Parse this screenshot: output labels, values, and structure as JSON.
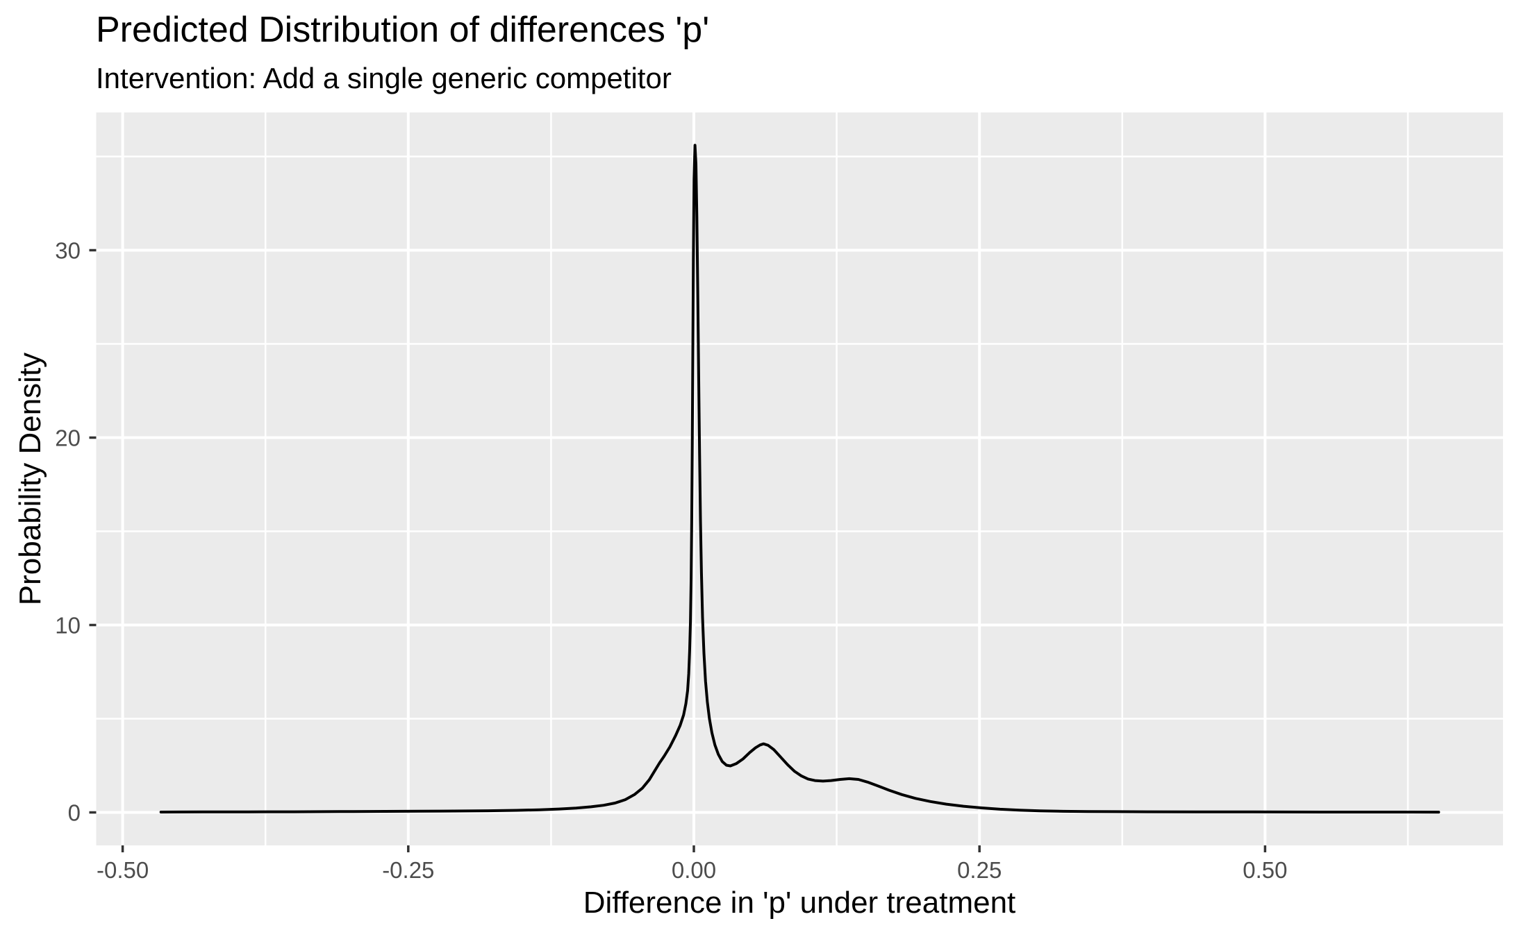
{
  "title": "Predicted Distribution of differences 'p'",
  "subtitle": "Intervention: Add a single generic competitor",
  "chart_data": {
    "type": "line",
    "title": "Predicted Distribution of differences 'p'",
    "subtitle": "Intervention: Add a single generic competitor",
    "xlabel": "Difference in 'p' under treatment",
    "ylabel": "Probability Density",
    "x_tick_labels": [
      "-0.50",
      "-0.25",
      "0.00",
      "0.25",
      "0.50"
    ],
    "x_tick_values": [
      -0.5,
      -0.25,
      0.0,
      0.25,
      0.5
    ],
    "y_tick_labels": [
      "0",
      "10",
      "20",
      "30"
    ],
    "y_tick_values": [
      0,
      10,
      20,
      30
    ],
    "x_minor_ticks": [
      -0.375,
      -0.125,
      0.125,
      0.375,
      0.625
    ],
    "y_minor_ticks": [
      5,
      15,
      25,
      35
    ],
    "xlim": [
      -0.523,
      0.708
    ],
    "ylim": [
      -1.78,
      37.35
    ],
    "grid": true,
    "legend": false,
    "colors": {
      "background": "#FFFFFF",
      "panel_bg": "#EBEBEB",
      "grid": "#FFFFFF",
      "axis_text": "#4D4D4D",
      "tick_mark": "#333333",
      "curve": "#000000"
    },
    "series": [
      {
        "name": "predicted density of differences",
        "color": "#000000",
        "points": [
          [
            -0.4665,
            0.02
          ],
          [
            -0.43,
            0.025
          ],
          [
            -0.39,
            0.03
          ],
          [
            -0.35,
            0.035
          ],
          [
            -0.31,
            0.045
          ],
          [
            -0.27,
            0.055
          ],
          [
            -0.24,
            0.065
          ],
          [
            -0.21,
            0.075
          ],
          [
            -0.18,
            0.09
          ],
          [
            -0.155,
            0.11
          ],
          [
            -0.135,
            0.14
          ],
          [
            -0.118,
            0.18
          ],
          [
            -0.103,
            0.23
          ],
          [
            -0.09,
            0.3
          ],
          [
            -0.079,
            0.38
          ],
          [
            -0.069,
            0.5
          ],
          [
            -0.06,
            0.68
          ],
          [
            -0.052,
            0.95
          ],
          [
            -0.045,
            1.3
          ],
          [
            -0.039,
            1.75
          ],
          [
            -0.034,
            2.25
          ],
          [
            -0.03,
            2.65
          ],
          [
            -0.026,
            3.0
          ],
          [
            -0.021,
            3.5
          ],
          [
            -0.016,
            4.1
          ],
          [
            -0.012,
            4.65
          ],
          [
            -0.009,
            5.2
          ],
          [
            -0.007,
            5.8
          ],
          [
            -0.0055,
            6.5
          ],
          [
            -0.0045,
            7.4
          ],
          [
            -0.0037,
            8.6
          ],
          [
            -0.003,
            10.2
          ],
          [
            -0.0024,
            12.5
          ],
          [
            -0.0019,
            15.5
          ],
          [
            -0.0014,
            19.5
          ],
          [
            -0.0009,
            24.5
          ],
          [
            -0.0004,
            29.5
          ],
          [
            0.0002,
            33.8
          ],
          [
            0.001,
            35.6
          ],
          [
            0.0018,
            34.6
          ],
          [
            0.0026,
            31.8
          ],
          [
            0.0034,
            27.8
          ],
          [
            0.0042,
            23.4
          ],
          [
            0.005,
            19.2
          ],
          [
            0.0058,
            15.6
          ],
          [
            0.0066,
            12.8
          ],
          [
            0.0076,
            10.4
          ],
          [
            0.0088,
            8.5
          ],
          [
            0.0102,
            7.0
          ],
          [
            0.0118,
            5.9
          ],
          [
            0.0136,
            5.0
          ],
          [
            0.0158,
            4.25
          ],
          [
            0.0184,
            3.6
          ],
          [
            0.0214,
            3.1
          ],
          [
            0.0248,
            2.72
          ],
          [
            0.0285,
            2.52
          ],
          [
            0.032,
            2.48
          ],
          [
            0.037,
            2.6
          ],
          [
            0.043,
            2.85
          ],
          [
            0.049,
            3.2
          ],
          [
            0.054,
            3.45
          ],
          [
            0.058,
            3.6
          ],
          [
            0.061,
            3.66
          ],
          [
            0.065,
            3.58
          ],
          [
            0.07,
            3.35
          ],
          [
            0.076,
            2.95
          ],
          [
            0.082,
            2.55
          ],
          [
            0.088,
            2.2
          ],
          [
            0.094,
            1.95
          ],
          [
            0.1,
            1.78
          ],
          [
            0.106,
            1.7
          ],
          [
            0.113,
            1.67
          ],
          [
            0.12,
            1.7
          ],
          [
            0.128,
            1.76
          ],
          [
            0.136,
            1.8
          ],
          [
            0.144,
            1.76
          ],
          [
            0.152,
            1.62
          ],
          [
            0.161,
            1.42
          ],
          [
            0.171,
            1.18
          ],
          [
            0.182,
            0.95
          ],
          [
            0.194,
            0.75
          ],
          [
            0.207,
            0.58
          ],
          [
            0.221,
            0.44
          ],
          [
            0.236,
            0.33
          ],
          [
            0.252,
            0.24
          ],
          [
            0.268,
            0.17
          ],
          [
            0.285,
            0.12
          ],
          [
            0.303,
            0.085
          ],
          [
            0.323,
            0.06
          ],
          [
            0.345,
            0.05
          ],
          [
            0.37,
            0.04
          ],
          [
            0.4,
            0.035
          ],
          [
            0.44,
            0.03
          ],
          [
            0.49,
            0.025
          ],
          [
            0.55,
            0.02
          ],
          [
            0.61,
            0.018
          ],
          [
            0.652,
            0.015
          ]
        ]
      }
    ]
  }
}
